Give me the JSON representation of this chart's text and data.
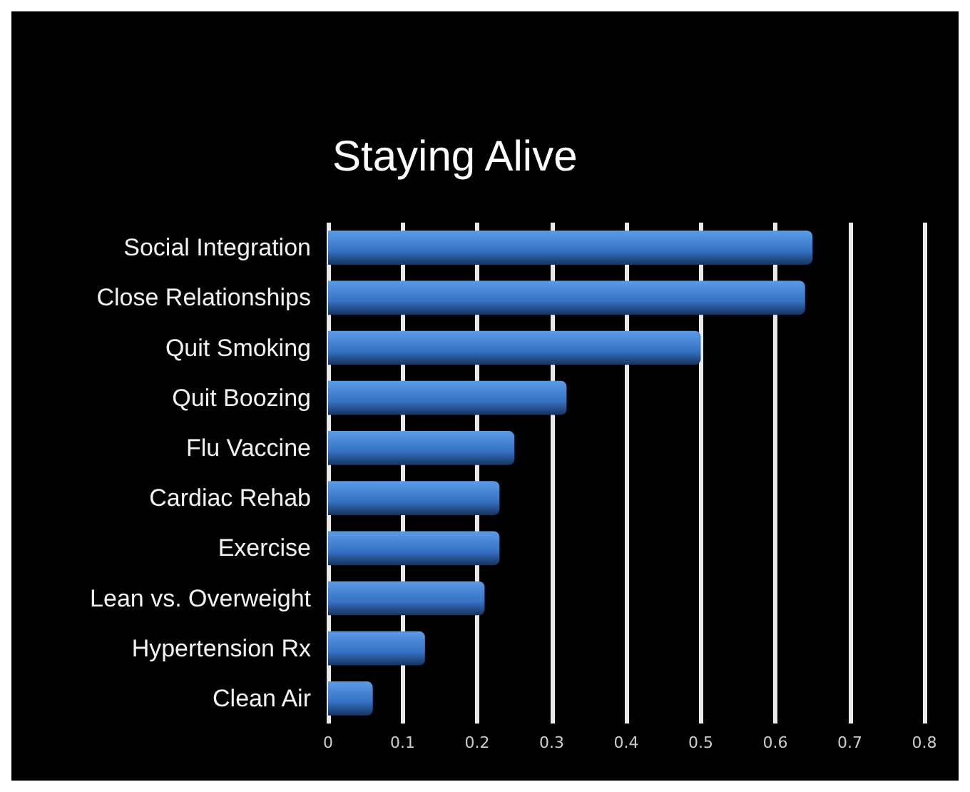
{
  "chart_data": {
    "type": "bar",
    "orientation": "horizontal",
    "title": "Staying Alive",
    "categories": [
      "Social Integration",
      "Close Relationships",
      "Quit Smoking",
      "Quit Boozing",
      "Flu Vaccine",
      "Cardiac Rehab",
      "Exercise",
      "Lean vs. Overweight",
      "Hypertension Rx",
      "Clean Air"
    ],
    "values": [
      0.65,
      0.64,
      0.5,
      0.32,
      0.25,
      0.23,
      0.23,
      0.21,
      0.13,
      0.06
    ],
    "color": "#3672c4",
    "xlim": [
      0,
      0.8
    ],
    "xticks": [
      0,
      0.1,
      0.2,
      0.3,
      0.4,
      0.5,
      0.6,
      0.7,
      0.8
    ],
    "grid": "x"
  }
}
